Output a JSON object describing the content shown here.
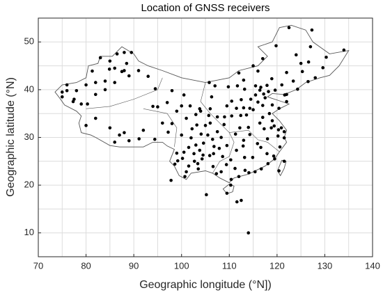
{
  "chart_data": {
    "type": "scatter",
    "title": "Location of GNSS receivers",
    "xlabel": "Geographic longitude (°N])",
    "ylabel": "Geographic latitude (°N)",
    "xlim": [
      70,
      140
    ],
    "ylim": [
      5,
      55
    ],
    "xticks": [
      70,
      80,
      90,
      100,
      110,
      120,
      130,
      140
    ],
    "yticks": [
      10,
      20,
      30,
      40,
      50
    ],
    "xminorticks": [
      75,
      85,
      95,
      105,
      115,
      125,
      135
    ],
    "yminorticks": [
      15,
      25,
      35,
      45
    ],
    "grid": true,
    "color": "#000000",
    "x": [
      75,
      76,
      77.5,
      79,
      80,
      82,
      84,
      86,
      87.5,
      89,
      93,
      84.9,
      81.3,
      85,
      86.5,
      88,
      89.5,
      83,
      88,
      84,
      80.3,
      82,
      78,
      76,
      75,
      86,
      91,
      88.5,
      77.3,
      80,
      85,
      88,
      91.1,
      92,
      94.4,
      97.2,
      89,
      86,
      82,
      87,
      95,
      97,
      100,
      101.8,
      94,
      98,
      100.5,
      103.8,
      103,
      104,
      105.7,
      106,
      106.3,
      99,
      101,
      96,
      94.5,
      98,
      111.7,
      109.8,
      107,
      113,
      116,
      118.9,
      122,
      119.8,
      115,
      105.8,
      112,
      117,
      123.4,
      125.3,
      126.6,
      129.6,
      130.3,
      134,
      127,
      124,
      121,
      122,
      126.5,
      128,
      125,
      127.3,
      122.5,
      121.6,
      124.3,
      116.4,
      117.2,
      114.5,
      112.5,
      115.5,
      118.2,
      113,
      111.5,
      117,
      120.4,
      118.4,
      115,
      113.6,
      114.3,
      112.4,
      119,
      116.6,
      115.5,
      117.9,
      119.6,
      113.2,
      110.5,
      116,
      117.5,
      122,
      118.8,
      120.3,
      121.5,
      120.2,
      117.3,
      114.3,
      112.9,
      115.9,
      119.3,
      118.1,
      121.5,
      120.6,
      119,
      117,
      116.4,
      114,
      111.3,
      112.2,
      113,
      111.5,
      113.2,
      114.9,
      116.6,
      118,
      117.9,
      120.9,
      119.4,
      110.5,
      109,
      108.9,
      107.5,
      109.5,
      104.1,
      106.5,
      106.7,
      102.7,
      100.2,
      103.8,
      104.6,
      105.5,
      107.5,
      108.3,
      102,
      101.5,
      100.5,
      99.2,
      103.5,
      101,
      104.5,
      105.9,
      107.9,
      109.5,
      102.2,
      103.2,
      100,
      98.6,
      97.8,
      100.7,
      103.4,
      104.3,
      102.6,
      105,
      106,
      101.5,
      99,
      103,
      106.8,
      108.6,
      113.3,
      114.1,
      110.3,
      108.3,
      109.4,
      111.2,
      110.4,
      112,
      116.7,
      115.4,
      106.6,
      107.3,
      110.3,
      109.5,
      105.2,
      119.5,
      112.5,
      111.6,
      114,
      121.5,
      120.4
    ],
    "values": [
      39.5,
      39.8,
      38,
      37,
      41,
      41.5,
      41.8,
      41.5,
      43.8,
      42.9,
      42.8,
      44.3,
      43.9,
      46,
      47.5,
      47.8,
      47.8,
      46.7,
      44,
      40,
      37,
      39,
      39.8,
      41,
      38.5,
      44.5,
      44,
      45.5,
      37.5,
      32.5,
      32,
      31,
      29.7,
      31.5,
      29.6,
      31.1,
      29.3,
      29,
      34,
      30.5,
      36.4,
      37.3,
      36.6,
      36.6,
      36.5,
      39.8,
      38.9,
      36,
      34.8,
      35.5,
      34.6,
      36,
      38.5,
      35.5,
      34,
      33,
      40.2,
      32.9,
      40.8,
      40.6,
      40.8,
      42,
      43.9,
      42.3,
      43.6,
      49.2,
      45,
      41.5,
      43.5,
      46.5,
      41.8,
      43.8,
      45.8,
      44.6,
      46.8,
      48.3,
      49,
      47.3,
      41,
      39,
      41.7,
      42.5,
      45.5,
      52.5,
      53,
      38.9,
      40.1,
      39.9,
      39.1,
      38,
      37.9,
      38.9,
      39.6,
      36.2,
      36.1,
      36.7,
      36.1,
      35,
      35.8,
      34.7,
      36.1,
      34.6,
      36.8,
      40.5,
      40.8,
      40.9,
      39.9,
      40.1,
      37.6,
      37.4,
      38.3,
      37.5,
      32,
      31.6,
      31.2,
      30.3,
      31.8,
      30.6,
      28.2,
      28.7,
      26.1,
      24.5,
      29.9,
      28,
      33.5,
      34.2,
      33,
      32.1,
      30.7,
      32,
      29.4,
      27.3,
      25.8,
      25.8,
      27.9,
      29.7,
      26.6,
      32,
      32.4,
      34.5,
      34.3,
      32.7,
      34.3,
      36.6,
      30.7,
      29.6,
      26.6,
      25,
      25.6,
      27.3,
      28.8,
      30.5,
      31.2,
      30,
      29.9,
      27.9,
      26.9,
      25.1,
      23.4,
      22.8,
      26.3,
      26.2,
      27.7,
      28.3,
      31.8,
      32.6,
      30.5,
      24.4,
      21,
      21.8,
      24.5,
      25.5,
      26.6,
      32.5,
      33,
      24,
      26.7,
      28.4,
      28.1,
      26,
      23.1,
      22.6,
      25.3,
      22.8,
      24.3,
      23.5,
      21.2,
      21.8,
      23.4,
      22.8,
      23.9,
      22.4,
      20,
      18.3,
      18,
      25.5,
      16.8,
      16.5,
      10,
      25,
      23
    ]
  }
}
